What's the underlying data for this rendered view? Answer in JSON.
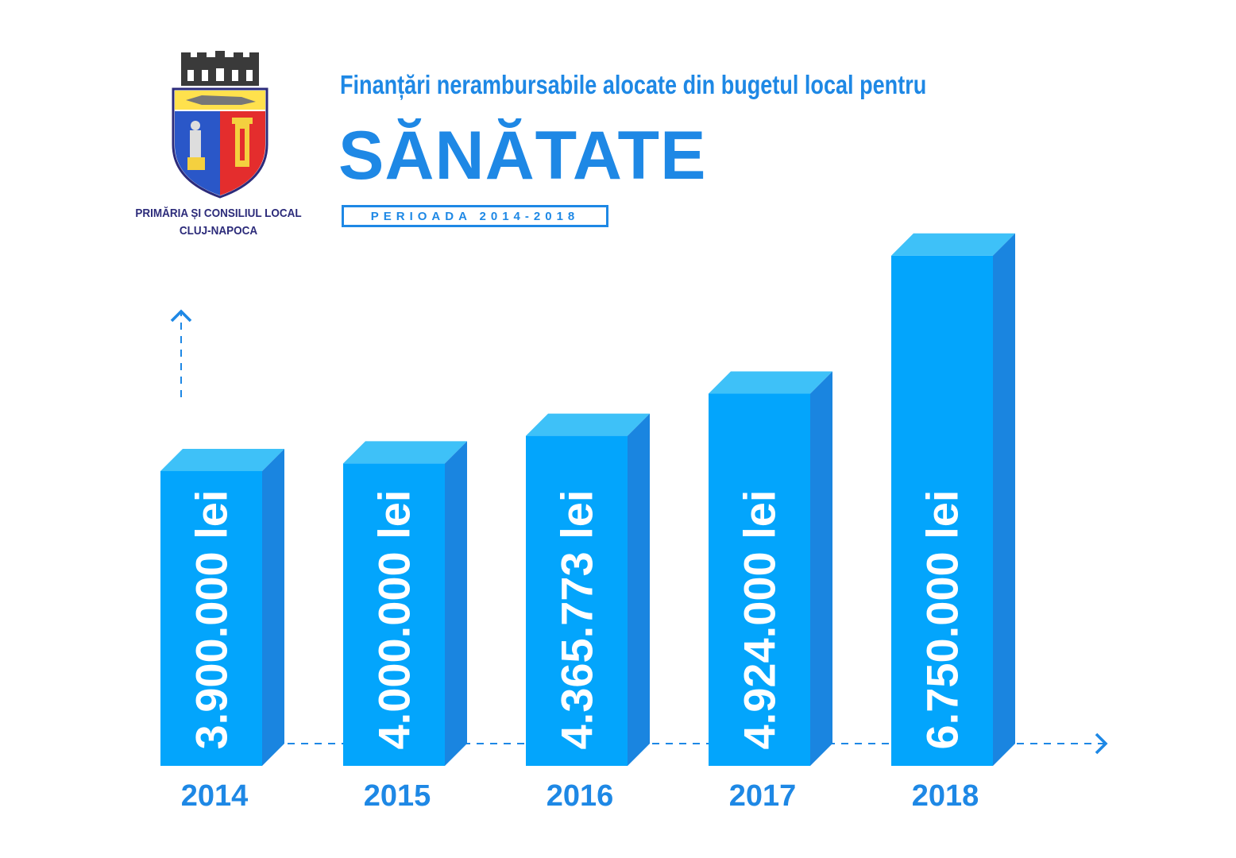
{
  "header": {
    "organization_line1": "PRIMĂRIA ȘI CONSILIUL LOCAL",
    "organization_line2": "CLUJ-NAPOCA",
    "title": "Finanțări nerambursabile alocate din bugetul local pentru",
    "subtitle": "SĂNĂTATE",
    "period": "PERIOADA 2014-2018"
  },
  "logo": {
    "icon": "coat-of-arms-icon"
  },
  "colors": {
    "bar_front": "#03a5fc",
    "bar_top": "#3ec1f8",
    "bar_side": "#1a85e0",
    "title": "#1e88e5",
    "org_text": "#2c2b7a",
    "axis": "#1e88e5"
  },
  "chart_data": {
    "type": "bar",
    "categories": [
      "2014",
      "2015",
      "2016",
      "2017",
      "2018"
    ],
    "values": [
      3900000,
      4000000,
      4365773,
      4924000,
      6750000
    ],
    "value_labels": [
      "3.900.000 lei",
      "4.000.000 lei",
      "4.365.773 lei",
      "4.924.000 lei",
      "6.750.000 lei"
    ],
    "unit": "lei",
    "style": "3d-columns",
    "ylim": [
      0,
      7000000
    ],
    "grid": false,
    "legend": "none"
  }
}
